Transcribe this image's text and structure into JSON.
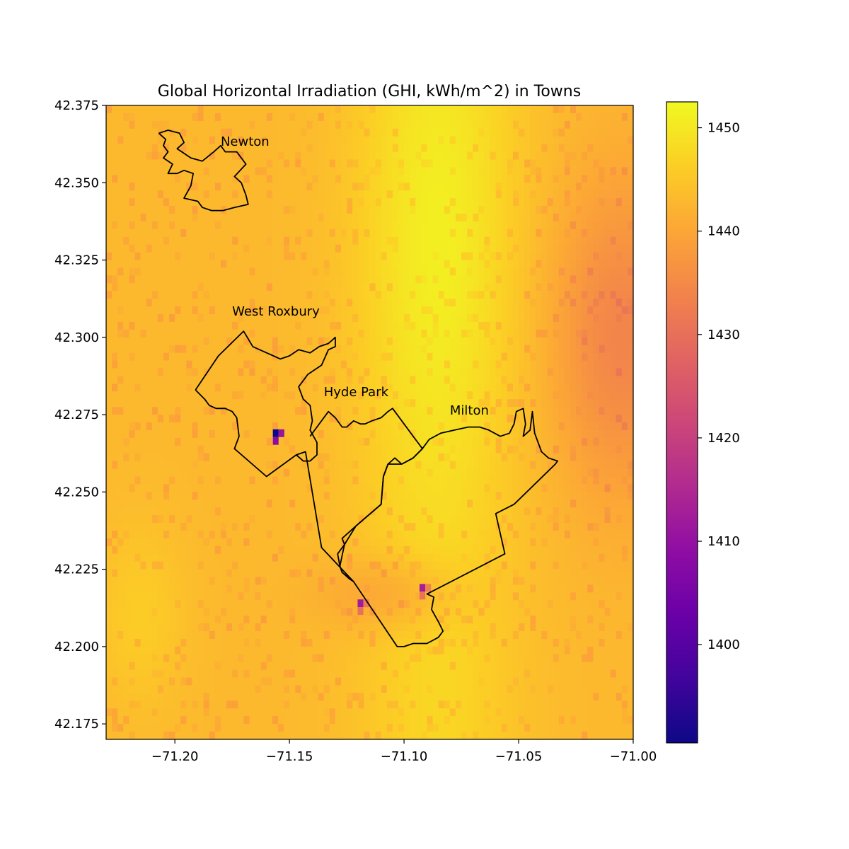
{
  "chart_data": {
    "type": "heatmap",
    "title": "Global Horizontal Irradiation (GHI, kWh/m^2) in Towns",
    "xlabel": "",
    "ylabel": "",
    "xlim": [
      -71.23,
      -71.0
    ],
    "ylim": [
      42.17,
      42.375
    ],
    "x_ticks": [
      -71.2,
      -71.15,
      -71.1,
      -71.05,
      -71.0
    ],
    "x_tick_labels": [
      "−71.20",
      "−71.15",
      "−71.10",
      "−71.05",
      "−71.00"
    ],
    "y_ticks": [
      42.175,
      42.2,
      42.225,
      42.25,
      42.275,
      42.3,
      42.325,
      42.35,
      42.375
    ],
    "y_tick_labels": [
      "42.175",
      "42.200",
      "42.225",
      "42.250",
      "42.275",
      "42.300",
      "42.325",
      "42.350",
      "42.375"
    ],
    "colorbar": {
      "colormap": "plasma",
      "range": [
        1390.5,
        1452.5
      ],
      "ticks": [
        1400,
        1410,
        1420,
        1430,
        1440,
        1450
      ],
      "tick_labels": [
        "1400",
        "1410",
        "1420",
        "1430",
        "1440",
        "1450"
      ]
    },
    "field": {
      "base": 1443,
      "bright_ridge_center_lon": -71.085,
      "bright_ridge_max": 1451,
      "east_low_center": [
        -71.005,
        42.3
      ],
      "east_low_value": 1434,
      "hotspots": [
        {
          "lon": -71.156,
          "lat": 42.269,
          "value": 1390.5
        },
        {
          "lon": -71.119,
          "lat": 42.214,
          "value": 1412
        },
        {
          "lon": -71.092,
          "lat": 42.219,
          "value": 1413
        }
      ]
    },
    "towns": [
      {
        "name": "Newton",
        "label_pos": [
          -71.18,
          42.362
        ],
        "boundary": [
          [
            -71.207,
            42.366
          ],
          [
            -71.203,
            42.367
          ],
          [
            -71.198,
            42.366
          ],
          [
            -71.196,
            42.363
          ],
          [
            -71.199,
            42.361
          ],
          [
            -71.193,
            42.358
          ],
          [
            -71.188,
            42.357
          ],
          [
            -71.183,
            42.36
          ],
          [
            -71.18,
            42.362
          ],
          [
            -71.178,
            42.36
          ],
          [
            -71.173,
            42.36
          ],
          [
            -71.169,
            42.356
          ],
          [
            -71.174,
            42.352
          ],
          [
            -71.171,
            42.35
          ],
          [
            -71.169,
            42.346
          ],
          [
            -71.168,
            42.343
          ],
          [
            -71.174,
            42.342
          ],
          [
            -71.179,
            42.341
          ],
          [
            -71.184,
            42.341
          ],
          [
            -71.188,
            42.342
          ],
          [
            -71.19,
            42.344
          ],
          [
            -71.196,
            42.345
          ],
          [
            -71.193,
            42.349
          ],
          [
            -71.192,
            42.353
          ],
          [
            -71.196,
            42.354
          ],
          [
            -71.199,
            42.353
          ],
          [
            -71.203,
            42.353
          ],
          [
            -71.201,
            42.356
          ],
          [
            -71.205,
            42.358
          ],
          [
            -71.203,
            42.36
          ],
          [
            -71.205,
            42.362
          ],
          [
            -71.204,
            42.364
          ],
          [
            -71.207,
            42.366
          ]
        ]
      },
      {
        "name": "West Roxbury",
        "label_pos": [
          -71.175,
          42.307
        ],
        "boundary": [
          [
            -71.191,
            42.283
          ],
          [
            -71.181,
            42.294
          ],
          [
            -71.17,
            42.302
          ],
          [
            -71.166,
            42.297
          ],
          [
            -71.163,
            42.296
          ],
          [
            -71.157,
            42.294
          ],
          [
            -71.154,
            42.293
          ],
          [
            -71.15,
            42.294
          ],
          [
            -71.146,
            42.296
          ],
          [
            -71.141,
            42.295
          ],
          [
            -71.137,
            42.297
          ],
          [
            -71.133,
            42.298
          ],
          [
            -71.13,
            42.3
          ],
          [
            -71.13,
            42.297
          ],
          [
            -71.133,
            42.296
          ],
          [
            -71.136,
            42.291
          ],
          [
            -71.142,
            42.288
          ],
          [
            -71.146,
            42.284
          ],
          [
            -71.144,
            42.28
          ],
          [
            -71.141,
            42.278
          ],
          [
            -71.14,
            42.273
          ],
          [
            -71.141,
            42.27
          ],
          [
            -71.138,
            42.266
          ],
          [
            -71.138,
            42.262
          ],
          [
            -71.141,
            42.26
          ],
          [
            -71.144,
            42.26
          ],
          [
            -71.147,
            42.262
          ],
          [
            -71.16,
            42.255
          ],
          [
            -71.174,
            42.264
          ],
          [
            -71.172,
            42.268
          ],
          [
            -71.173,
            42.274
          ],
          [
            -71.175,
            42.276
          ],
          [
            -71.178,
            42.277
          ],
          [
            -71.182,
            42.277
          ],
          [
            -71.185,
            42.278
          ],
          [
            -71.187,
            42.28
          ],
          [
            -71.191,
            42.283
          ]
        ]
      },
      {
        "name": "Hyde Park",
        "label_pos": [
          -71.135,
          42.281
        ],
        "boundary": [
          [
            -71.147,
            42.262
          ],
          [
            -71.143,
            42.263
          ],
          [
            -71.136,
            42.232
          ],
          [
            -71.122,
            42.221
          ],
          [
            -71.124,
            42.222
          ],
          [
            -71.127,
            42.224
          ],
          [
            -71.128,
            42.226
          ],
          [
            -71.129,
            42.23
          ],
          [
            -71.126,
            42.233
          ],
          [
            -71.127,
            42.235
          ],
          [
            -71.121,
            42.239
          ],
          [
            -71.11,
            42.246
          ],
          [
            -71.109,
            42.255
          ],
          [
            -71.107,
            42.259
          ],
          [
            -71.104,
            42.261
          ],
          [
            -71.101,
            42.259
          ],
          [
            -71.096,
            42.261
          ],
          [
            -71.092,
            42.264
          ],
          [
            -71.094,
            42.266
          ],
          [
            -71.096,
            42.268
          ],
          [
            -71.105,
            42.277
          ],
          [
            -71.107,
            42.276
          ],
          [
            -71.11,
            42.274
          ],
          [
            -71.114,
            42.273
          ],
          [
            -71.117,
            42.272
          ],
          [
            -71.119,
            42.272
          ],
          [
            -71.122,
            42.273
          ],
          [
            -71.125,
            42.271
          ],
          [
            -71.127,
            42.271
          ],
          [
            -71.13,
            42.274
          ],
          [
            -71.133,
            42.276
          ],
          [
            -71.135,
            42.274
          ],
          [
            -71.139,
            42.27
          ],
          [
            -71.141,
            42.268
          ]
        ]
      },
      {
        "name": "Milton",
        "label_pos": [
          -71.08,
          42.275
        ],
        "boundary": [
          [
            -71.092,
            42.264
          ],
          [
            -71.089,
            42.267
          ],
          [
            -71.084,
            42.269
          ],
          [
            -71.078,
            42.27
          ],
          [
            -71.072,
            42.271
          ],
          [
            -71.067,
            42.271
          ],
          [
            -71.063,
            42.27
          ],
          [
            -71.058,
            42.268
          ],
          [
            -71.054,
            42.269
          ],
          [
            -71.052,
            42.272
          ],
          [
            -71.051,
            42.276
          ],
          [
            -71.048,
            42.277
          ],
          [
            -71.047,
            42.272
          ],
          [
            -71.048,
            42.268
          ],
          [
            -71.045,
            42.27
          ],
          [
            -71.044,
            42.276
          ],
          [
            -71.043,
            42.269
          ],
          [
            -71.04,
            42.263
          ],
          [
            -71.037,
            42.261
          ],
          [
            -71.033,
            42.26
          ],
          [
            -71.034,
            42.259
          ],
          [
            -71.052,
            42.246
          ],
          [
            -71.06,
            42.243
          ],
          [
            -71.056,
            42.23
          ],
          [
            -71.09,
            42.217
          ],
          [
            -71.087,
            42.216
          ],
          [
            -71.088,
            42.212
          ],
          [
            -71.085,
            42.208
          ],
          [
            -71.083,
            42.205
          ],
          [
            -71.085,
            42.203
          ],
          [
            -71.09,
            42.201
          ],
          [
            -71.096,
            42.201
          ],
          [
            -71.1,
            42.2
          ],
          [
            -71.103,
            42.2
          ],
          [
            -71.122,
            42.221
          ],
          [
            -71.127,
            42.224
          ],
          [
            -71.128,
            42.226
          ],
          [
            -71.126,
            42.233
          ],
          [
            -71.121,
            42.239
          ],
          [
            -71.11,
            42.246
          ],
          [
            -71.109,
            42.255
          ],
          [
            -71.107,
            42.259
          ],
          [
            -71.101,
            42.259
          ],
          [
            -71.096,
            42.261
          ],
          [
            -71.092,
            42.264
          ]
        ]
      }
    ]
  }
}
